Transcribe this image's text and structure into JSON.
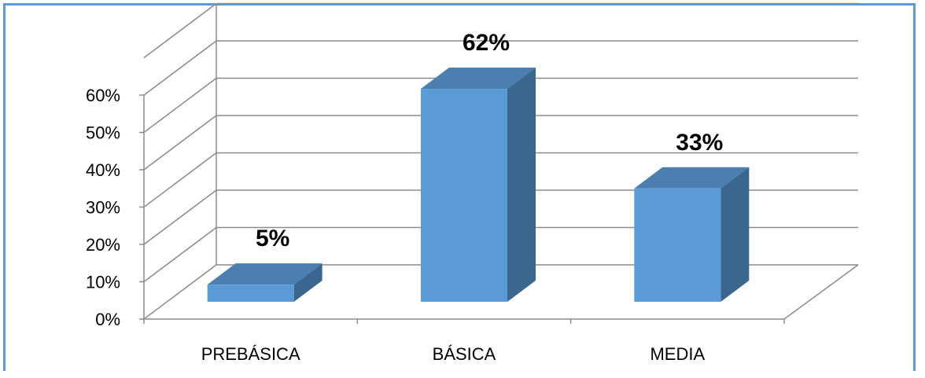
{
  "chart_data": {
    "type": "bar",
    "categories": [
      "PREBÁSICA",
      "BÁSICA",
      "MEDIA"
    ],
    "values": [
      5,
      62,
      33
    ],
    "data_labels": [
      "5%",
      "62%",
      "33%"
    ],
    "ylim": [
      0,
      60
    ],
    "y_ticks": [
      "0%",
      "10%",
      "20%",
      "30%",
      "40%",
      "50%",
      "60%"
    ],
    "grid": true,
    "three_d": true,
    "colors": {
      "front": "#5b9bd5",
      "top": "#4a7fb0",
      "side": "#3a6690",
      "grid": "#8c8c8c",
      "frame": "#5b9bd5"
    }
  }
}
